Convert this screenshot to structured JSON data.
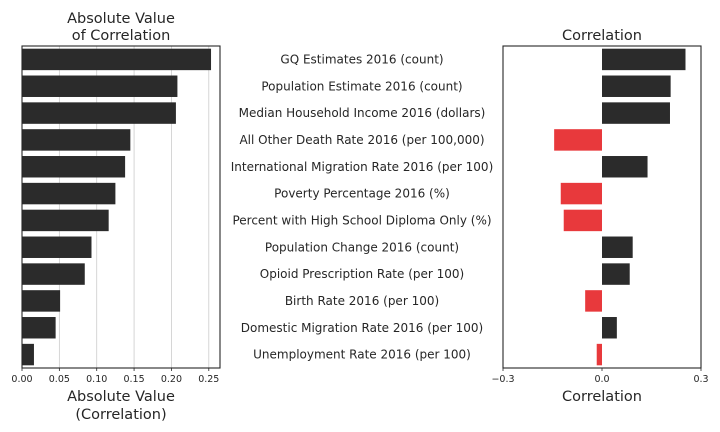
{
  "chart_data": [
    {
      "type": "bar",
      "orientation": "horizontal",
      "title_lines": [
        "Absolute Value",
        "of Correlation"
      ],
      "xlabel_lines": [
        "Absolute Value",
        "(Correlation)"
      ],
      "xlim": [
        0,
        0.265
      ],
      "xticks": [
        0.0,
        0.05,
        0.1,
        0.15,
        0.2,
        0.25
      ],
      "xtick_labels": [
        "0.00",
        "0.05",
        "0.10",
        "0.15",
        "0.20",
        "0.25"
      ],
      "grid": "vertical",
      "values": [
        0.253,
        0.208,
        0.206,
        0.145,
        0.138,
        0.125,
        0.116,
        0.093,
        0.084,
        0.051,
        0.045,
        0.016
      ],
      "bar_colors": [
        "#2b2b2b",
        "#2b2b2b",
        "#2b2b2b",
        "#e8393c",
        "#2b2b2b",
        "#e8393c",
        "#e8393c",
        "#2b2b2b",
        "#2b2b2b",
        "#e8393c",
        "#2b2b2b",
        "#e8393c"
      ],
      "bar_fill": "#2b2b2b"
    },
    {
      "type": "bar",
      "orientation": "horizontal",
      "title": "Correlation",
      "xlabel": "Correlation",
      "xlim": [
        -0.3,
        0.3
      ],
      "xticks": [
        -0.3,
        0.0,
        0.3
      ],
      "xtick_labels": [
        "−0.3",
        "0.0",
        "0.3"
      ],
      "grid": "none",
      "categories": [
        "GQ Estimates 2016 (count)",
        "Population Estimate 2016 (count)",
        "Median Household Income 2016 (dollars)",
        "All Other Death Rate 2016 (per 100,000)",
        "International Migration Rate 2016 (per 100)",
        "Poverty Percentage 2016 (%)",
        "Percent with High School Diploma Only (%)",
        "Population Change 2016 (count)",
        "Opioid Prescription Rate (per 100)",
        "Birth Rate 2016 (per 100)",
        "Domestic Migration Rate 2016 (per 100)",
        "Unemployment Rate 2016 (per 100)"
      ],
      "values": [
        0.253,
        0.208,
        0.206,
        -0.145,
        0.138,
        -0.125,
        -0.116,
        0.093,
        0.084,
        -0.051,
        0.045,
        -0.016
      ],
      "positive_color": "#2b2b2b",
      "negative_color": "#e8393c"
    }
  ]
}
